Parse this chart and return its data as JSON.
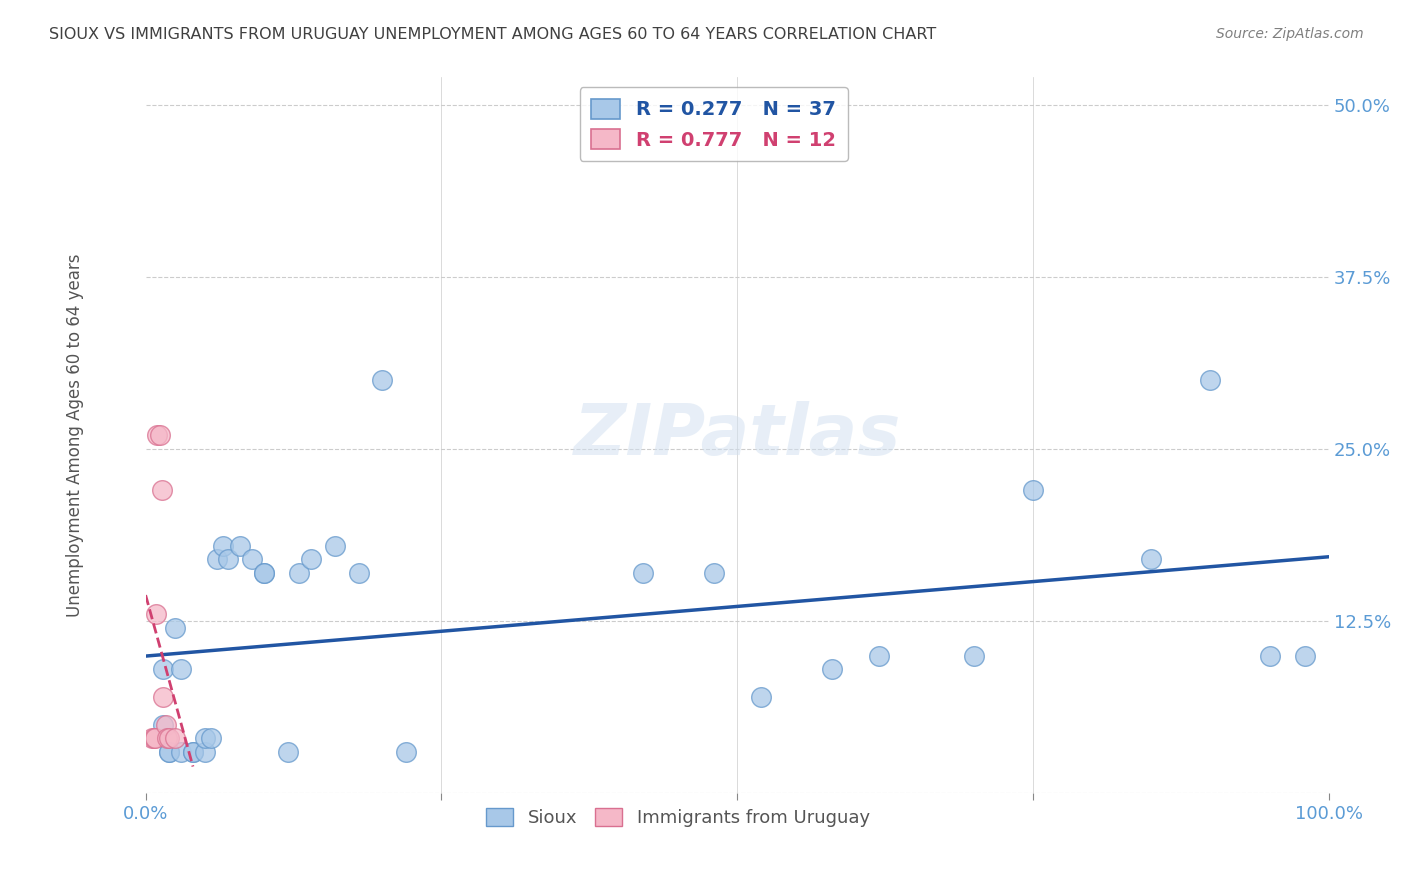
{
  "title": "SIOUX VS IMMIGRANTS FROM URUGUAY UNEMPLOYMENT AMONG AGES 60 TO 64 YEARS CORRELATION CHART",
  "source": "Source: ZipAtlas.com",
  "ylabel": "Unemployment Among Ages 60 to 64 years",
  "xlim": [
    0.0,
    1.0
  ],
  "ylim": [
    0.0,
    0.52
  ],
  "xticks": [
    0.0,
    0.25,
    0.5,
    0.75,
    1.0
  ],
  "xtick_labels": [
    "0.0%",
    "",
    "",
    "",
    "100.0%"
  ],
  "yticks": [
    0.0,
    0.125,
    0.25,
    0.375,
    0.5
  ],
  "ytick_labels": [
    "",
    "12.5%",
    "25.0%",
    "37.5%",
    "50.0%"
  ],
  "sioux_x": [
    0.015,
    0.015,
    0.02,
    0.02,
    0.025,
    0.03,
    0.03,
    0.04,
    0.04,
    0.05,
    0.05,
    0.055,
    0.06,
    0.065,
    0.07,
    0.08,
    0.09,
    0.1,
    0.1,
    0.12,
    0.13,
    0.14,
    0.16,
    0.18,
    0.2,
    0.22,
    0.42,
    0.48,
    0.52,
    0.58,
    0.62,
    0.7,
    0.75,
    0.85,
    0.9,
    0.95,
    0.98
  ],
  "sioux_y": [
    0.05,
    0.09,
    0.03,
    0.03,
    0.12,
    0.03,
    0.09,
    0.03,
    0.03,
    0.03,
    0.04,
    0.04,
    0.17,
    0.18,
    0.17,
    0.18,
    0.17,
    0.16,
    0.16,
    0.03,
    0.16,
    0.17,
    0.18,
    0.16,
    0.3,
    0.03,
    0.16,
    0.16,
    0.07,
    0.09,
    0.1,
    0.1,
    0.22,
    0.17,
    0.3,
    0.1,
    0.1
  ],
  "uruguay_x": [
    0.005,
    0.007,
    0.008,
    0.009,
    0.01,
    0.012,
    0.014,
    0.015,
    0.017,
    0.018,
    0.02,
    0.025
  ],
  "uruguay_y": [
    0.04,
    0.04,
    0.04,
    0.13,
    0.26,
    0.26,
    0.22,
    0.07,
    0.05,
    0.04,
    0.04,
    0.04
  ],
  "sioux_color": "#a8c8e8",
  "sioux_edge": "#6699cc",
  "uruguay_color": "#f5b8c8",
  "uruguay_edge": "#d97090",
  "sioux_line_color": "#2155a3",
  "uruguay_line_color": "#d04070",
  "sioux_R": "0.277",
  "sioux_N": "37",
  "uruguay_R": "0.777",
  "uruguay_N": "12",
  "legend_sioux_label": "Sioux",
  "legend_uruguay_label": "Immigrants from Uruguay",
  "background_color": "#ffffff",
  "grid_color": "#cccccc",
  "title_color": "#404040",
  "axis_label_color": "#555555",
  "tick_label_color": "#5b9bd5",
  "source_color": "#808080"
}
